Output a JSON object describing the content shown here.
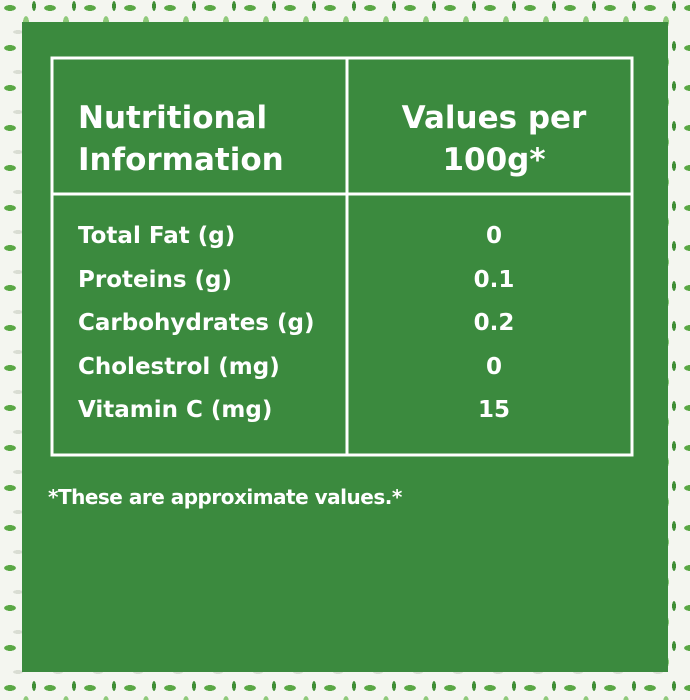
{
  "table": {
    "header": [
      "Nutritional Information",
      "Values per 100g*"
    ],
    "rows": [
      [
        "Total Fat (g)",
        "0"
      ],
      [
        "Proteins (g)",
        "0.1"
      ],
      [
        "Carbohydrates (g)",
        "0.2"
      ],
      [
        "Cholestrol (mg)",
        "0"
      ],
      [
        "Vitamin C (mg)",
        "15"
      ]
    ]
  },
  "footnote": "*These are approximate values.*"
}
